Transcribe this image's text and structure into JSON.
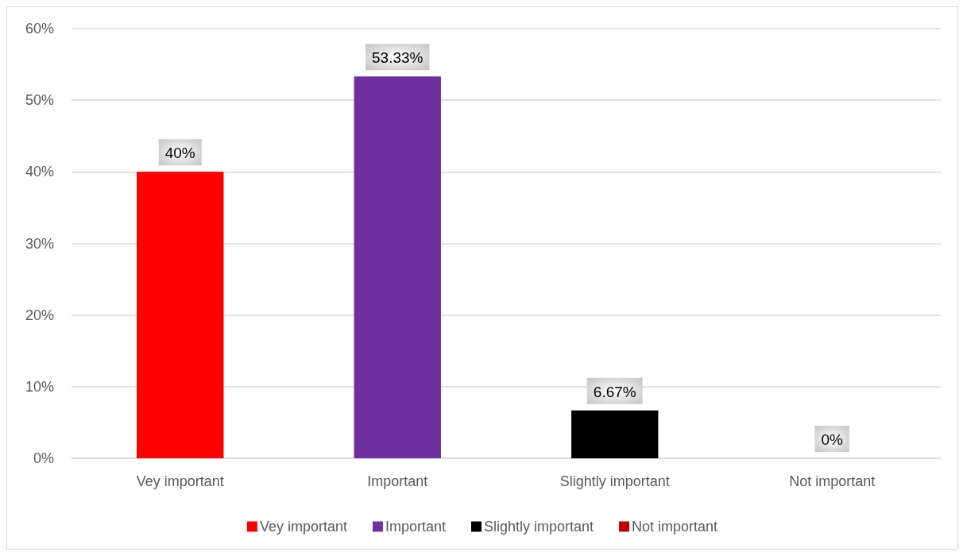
{
  "chart_data": {
    "type": "bar",
    "categories": [
      "Vey important",
      "Important",
      "Slightly important",
      "Not important"
    ],
    "series": [
      {
        "name": "Vey important",
        "color": "#ff0000",
        "values": [
          40,
          null,
          null,
          null
        ],
        "value_labels": [
          "40%",
          null,
          null,
          null
        ]
      },
      {
        "name": "Important",
        "color": "#7030a0",
        "values": [
          null,
          53.33,
          null,
          null
        ],
        "value_labels": [
          null,
          "53.33%",
          null,
          null
        ]
      },
      {
        "name": "Slightly important",
        "color": "#000000",
        "values": [
          null,
          null,
          6.67,
          null
        ],
        "value_labels": [
          null,
          null,
          "6.67%",
          null
        ]
      },
      {
        "name": "Not important",
        "color": "#c00000",
        "values": [
          null,
          null,
          null,
          0
        ],
        "value_labels": [
          null,
          null,
          null,
          "0%"
        ]
      }
    ],
    "ylim": [
      0,
      60
    ],
    "yticks": [
      {
        "value": 0,
        "label": "0%"
      },
      {
        "value": 10,
        "label": "10%"
      },
      {
        "value": 20,
        "label": "20%"
      },
      {
        "value": 30,
        "label": "30%"
      },
      {
        "value": 40,
        "label": "40%"
      },
      {
        "value": 50,
        "label": "50%"
      },
      {
        "value": 60,
        "label": "60%"
      }
    ],
    "grid": "y",
    "legend": "bottom"
  }
}
